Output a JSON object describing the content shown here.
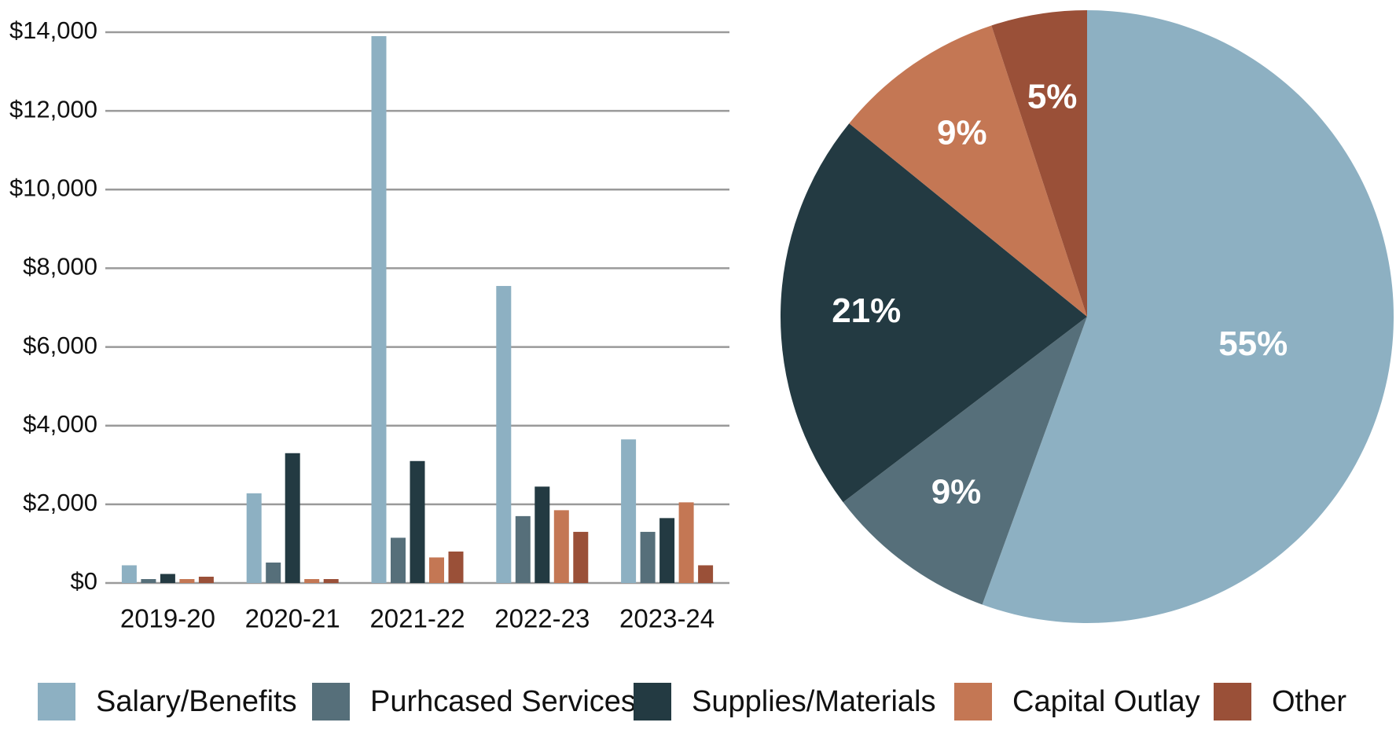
{
  "chart_data": [
    {
      "type": "bar",
      "categories": [
        "2019-20",
        "2020-21",
        "2021-22",
        "2022-23",
        "2023-24"
      ],
      "series": [
        {
          "name": "Salary/Benefits",
          "color": "#8db0c2",
          "values": [
            450,
            2280,
            13900,
            7550,
            3650
          ]
        },
        {
          "name": "Purhcased Services",
          "color": "#566f7a",
          "values": [
            100,
            520,
            1150,
            1700,
            1300
          ]
        },
        {
          "name": "Supplies/Materials",
          "color": "#233a42",
          "values": [
            230,
            3300,
            3100,
            2450,
            1650
          ]
        },
        {
          "name": "Capital Outlay",
          "color": "#c47754",
          "values": [
            100,
            100,
            650,
            1850,
            2050
          ]
        },
        {
          "name": "Other",
          "color": "#9a5038",
          "values": [
            160,
            100,
            800,
            1300,
            450
          ]
        }
      ],
      "ylim": [
        0,
        14000
      ],
      "yticks": [
        {
          "value": 0,
          "label": "$0"
        },
        {
          "value": 2000,
          "label": "$2,000"
        },
        {
          "value": 4000,
          "label": "$4,000"
        },
        {
          "value": 6000,
          "label": "$6,000"
        },
        {
          "value": 8000,
          "label": "$8,000"
        },
        {
          "value": 10000,
          "label": "$10,000"
        },
        {
          "value": 12000,
          "label": "$12,000"
        },
        {
          "value": 14000,
          "label": "$14,000"
        }
      ],
      "grid": true,
      "legend": "bottom"
    },
    {
      "type": "pie",
      "values": [
        55,
        9,
        21,
        9,
        5
      ],
      "value_labels": [
        "55%",
        "9%",
        "21%",
        "9%",
        "5%"
      ],
      "colors": [
        "#8db0c2",
        "#566f7a",
        "#233a42",
        "#c47754",
        "#9a5038"
      ]
    }
  ]
}
